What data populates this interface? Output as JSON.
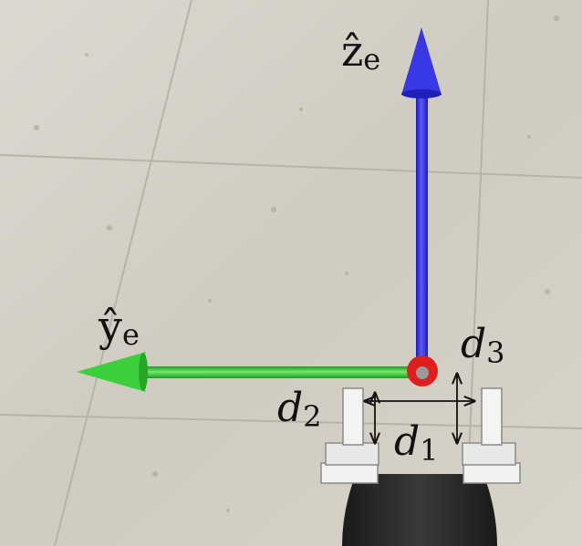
{
  "axes": {
    "z_axis": {
      "symbol": "ẑ",
      "subscript": "e",
      "color": "#2b2bd6",
      "icon": "up-arrow"
    },
    "y_axis": {
      "symbol": "ŷ",
      "subscript": "e",
      "color": "#2fbf2f",
      "icon": "left-arrow"
    },
    "origin": {
      "color": "#e02020"
    }
  },
  "dimensions": {
    "d1": {
      "symbol": "d",
      "subscript": "1"
    },
    "d2": {
      "symbol": "d",
      "subscript": "2"
    },
    "d3": {
      "symbol": "d",
      "subscript": "3"
    }
  },
  "scene": {
    "floor_color": "#d6d2c8",
    "floor_line_color": "#b9b4a9",
    "gripper_finger_color": "#eeeeee",
    "gripper_body_color": "#2a2a2a"
  }
}
